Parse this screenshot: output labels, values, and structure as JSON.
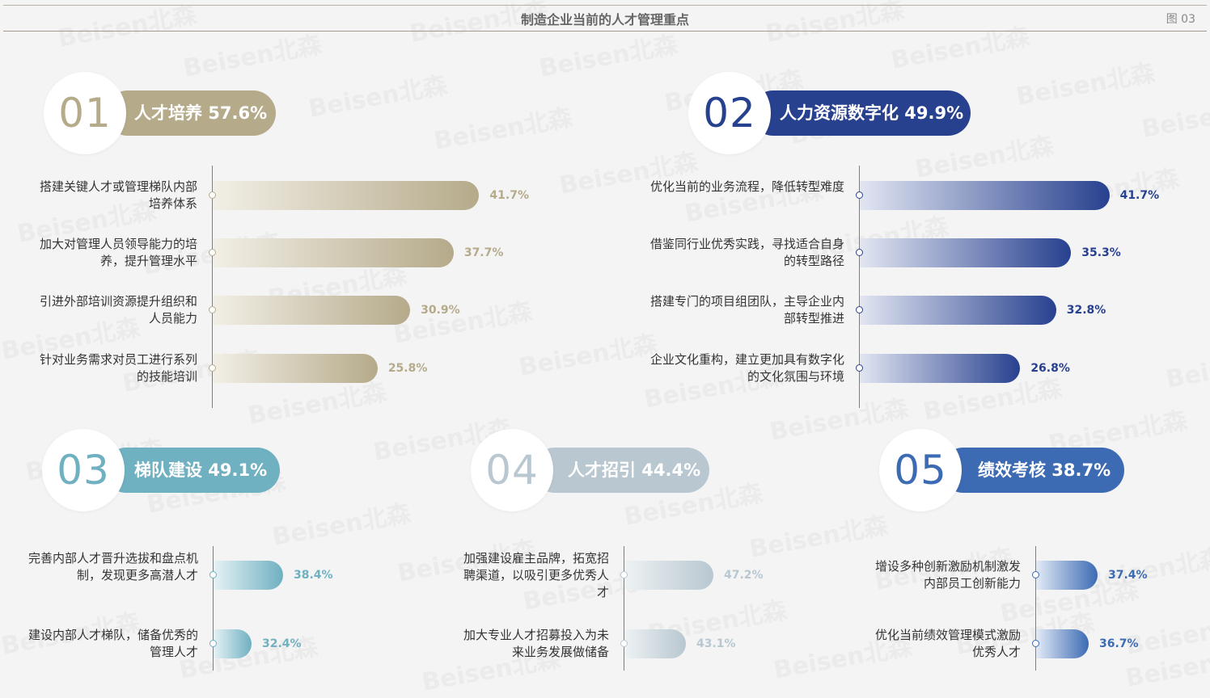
{
  "header": {
    "title": "制造企业当前的人才管理重点",
    "figure_label": "图 03"
  },
  "watermark": "Beisen北森",
  "colors": {
    "s1": "#b5aa8a",
    "s1_light": "#f2efe6",
    "s2": "#28418f",
    "s2_light": "#e2e6f2",
    "s3": "#6fb0c1",
    "s3_light": "#e6f2f5",
    "s4": "#b8c7d0",
    "s4_light": "#eef2f4",
    "s5": "#3c6bb3",
    "s5_light": "#e2eaf6"
  },
  "chart_data": [
    {
      "type": "bar",
      "number": "01",
      "title": "人才培养 57.6%",
      "categories": [
        "搭建关键人才或管理梯队内部培养体系",
        "加大对管理人员领导能力的培养，提升管理水平",
        "引进外部培训资源提升组织和人员能力",
        "针对业务需求对员工进行系列的技能培训"
      ],
      "values": [
        41.7,
        37.7,
        30.9,
        25.8
      ],
      "value_labels": [
        "41.7%",
        "37.7%",
        "30.9%",
        "25.8%"
      ]
    },
    {
      "type": "bar",
      "number": "02",
      "title": "人力资源数字化 49.9%",
      "categories": [
        "优化当前的业务流程，降低转型难度",
        "借鉴同行业优秀实践，寻找适合自身的转型路径",
        "搭建专门的项目组团队，主导企业内部转型推进",
        "企业文化重构，建立更加具有数字化的文化氛围与环境"
      ],
      "values": [
        41.7,
        35.3,
        32.8,
        26.8
      ],
      "value_labels": [
        "41.7%",
        "35.3%",
        "32.8%",
        "26.8%"
      ]
    },
    {
      "type": "bar",
      "number": "03",
      "title": "梯队建设 49.1%",
      "categories": [
        "完善内部人才晋升选拔和盘点机制，发现更多高潜人才",
        "建设内部人才梯队，储备优秀的管理人才"
      ],
      "values": [
        38.4,
        32.4
      ],
      "value_labels": [
        "38.4%",
        "32.4%"
      ]
    },
    {
      "type": "bar",
      "number": "04",
      "title": "人才招引 44.4%",
      "categories": [
        "加强建设雇主品牌，拓宽招聘渠道，以吸引更多优秀人才",
        "加大专业人才招募投入为未来业务发展做储备"
      ],
      "values": [
        47.2,
        43.1
      ],
      "value_labels": [
        "47.2%",
        "43.1%"
      ]
    },
    {
      "type": "bar",
      "number": "05",
      "title": "绩效考核 38.7%",
      "categories": [
        "增设多种创新激励机制激发内部员工创新能力",
        "优化当前绩效管理模式激励优秀人才"
      ],
      "values": [
        37.4,
        36.7
      ],
      "value_labels": [
        "37.4%",
        "36.7%"
      ]
    }
  ]
}
